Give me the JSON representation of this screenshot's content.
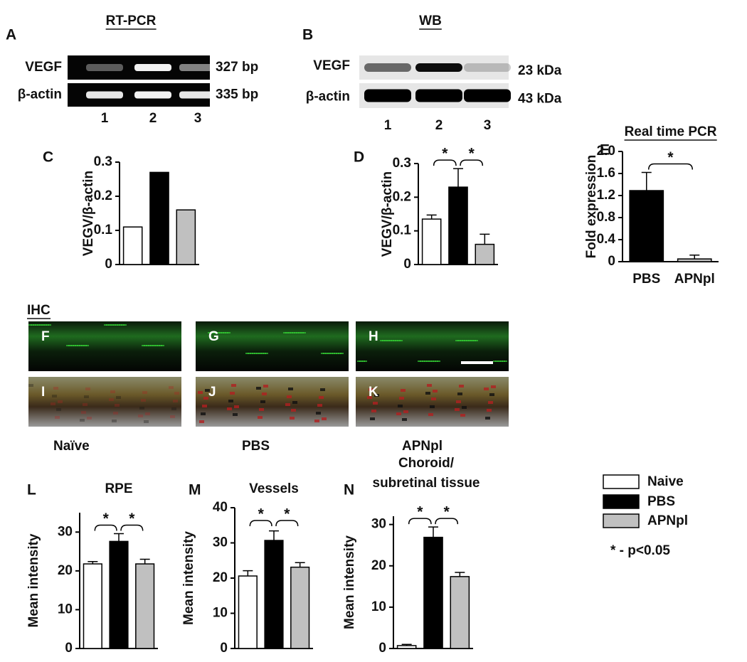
{
  "figure": {
    "rt_pcr": {
      "panel": "A",
      "title": "RT-PCR",
      "rows": [
        {
          "label": "VEGF",
          "size": "327 bp"
        },
        {
          "label": "β-actin",
          "size": "335 bp"
        }
      ],
      "lanes": [
        "1",
        "2",
        "3"
      ]
    },
    "wb": {
      "panel": "B",
      "title": "WB",
      "rows": [
        {
          "label": "VEGF",
          "size": "23 kDa"
        },
        {
          "label": "β-actin",
          "size": "43 kDa"
        }
      ],
      "lanes": [
        "1",
        "2",
        "3"
      ]
    },
    "ihc": {
      "title": "IHC",
      "panels": [
        "F",
        "G",
        "H",
        "I",
        "J",
        "K"
      ],
      "groups": [
        "Naïve",
        "PBS",
        "APNpl"
      ]
    },
    "legend": {
      "entries": [
        {
          "label": "Naive",
          "color": "#ffffff"
        },
        {
          "label": "PBS",
          "color": "#000000"
        },
        {
          "label": "APNpl",
          "color": "#c0c0c0"
        }
      ],
      "note": "* - p<0.05"
    }
  },
  "chart_data": [
    {
      "type": "bar",
      "panel": "C",
      "ylabel": "VEGV/β-actin",
      "categories": [
        null,
        null,
        null
      ],
      "values": [
        0.11,
        0.27,
        0.16
      ],
      "colors": [
        "#ffffff",
        "#000000",
        "#c0c0c0"
      ],
      "ylim": [
        0,
        0.3
      ],
      "yticks": [
        0,
        0.1,
        0.2,
        0.3
      ]
    },
    {
      "type": "bar",
      "panel": "D",
      "ylabel": "VEGV/β-actin",
      "categories": [
        null,
        null,
        null
      ],
      "values": [
        0.135,
        0.23,
        0.06
      ],
      "errors": [
        0.012,
        0.055,
        0.03
      ],
      "colors": [
        "#ffffff",
        "#000000",
        "#c0c0c0"
      ],
      "significance": [
        "*",
        "*"
      ],
      "ylim": [
        0,
        0.3
      ],
      "yticks": [
        0,
        0.1,
        0.2,
        0.3
      ]
    },
    {
      "type": "bar",
      "panel": "E",
      "title": "Real time PCR",
      "ylabel": "Fold expression",
      "categories": [
        "PBS",
        "APNpl"
      ],
      "values": [
        1.29,
        0.05
      ],
      "errors": [
        0.33,
        0.07
      ],
      "colors": [
        "#000000",
        "#c0c0c0"
      ],
      "significance": [
        "*"
      ],
      "ylim": [
        0,
        2
      ],
      "yticks": [
        0,
        0.4,
        0.8,
        1.2,
        1.6,
        {
          "value": 2,
          "label": "2.0"
        }
      ]
    },
    {
      "type": "bar",
      "panel": "L",
      "title": "RPE",
      "ylabel": "Mean intensity",
      "categories": [
        null,
        null,
        null
      ],
      "values": [
        21.8,
        27.6,
        21.8
      ],
      "errors": [
        0.6,
        2.0,
        1.2
      ],
      "colors": [
        "#ffffff",
        "#000000",
        "#c0c0c0"
      ],
      "significance": [
        "*",
        "*"
      ],
      "ylim": [
        0,
        35
      ],
      "yticks": [
        0,
        10,
        20,
        30
      ]
    },
    {
      "type": "bar",
      "panel": "M",
      "title": "Vessels",
      "ylabel": "Mean intensity",
      "categories": [
        null,
        null,
        null
      ],
      "values": [
        20.6,
        30.7,
        23.1
      ],
      "errors": [
        1.5,
        2.7,
        1.3
      ],
      "colors": [
        "#ffffff",
        "#000000",
        "#c0c0c0"
      ],
      "significance": [
        "*",
        "*"
      ],
      "ylim": [
        0,
        40
      ],
      "yticks": [
        0,
        10,
        20,
        30,
        40
      ]
    },
    {
      "type": "bar",
      "panel": "N",
      "title": [
        "Choroid/",
        "subretinal tissue"
      ],
      "ylabel": "Mean intensity",
      "categories": [
        null,
        null,
        null
      ],
      "values": [
        0.7,
        26.9,
        17.4
      ],
      "errors": [
        0.3,
        2.5,
        1.0
      ],
      "colors": [
        "#ffffff",
        "#000000",
        "#c0c0c0"
      ],
      "significance": [
        "*",
        "*"
      ],
      "ylim": [
        0,
        32
      ],
      "yticks": [
        0,
        10,
        20,
        30
      ]
    }
  ]
}
